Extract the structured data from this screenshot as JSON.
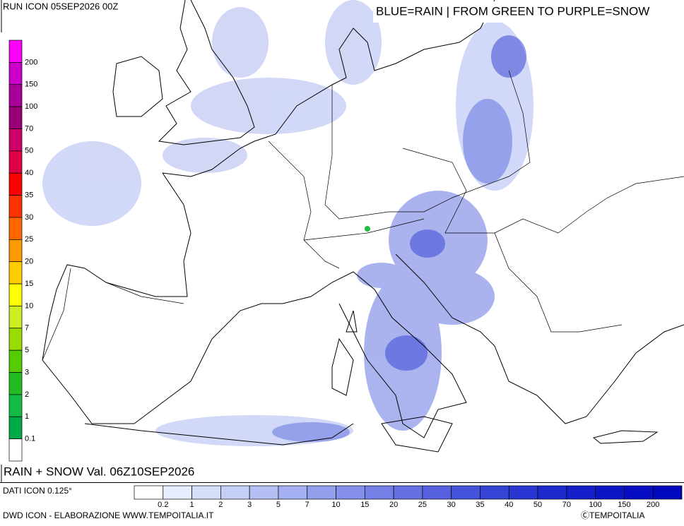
{
  "header": {
    "run": "RUN ICON 05SEP2026 00Z",
    "legend_note": "BLUE=RAIN | FROM GREEN TO PURPLE=SNOW",
    "valid": "RAIN + SNOW Val. 06Z10SEP2026"
  },
  "snow_scale": {
    "labels": [
      "200",
      "150",
      "100",
      "70",
      "50",
      "40",
      "35",
      "30",
      "25",
      "20",
      "15",
      "10",
      "7",
      "5",
      "3",
      "2",
      "1",
      "0.1"
    ],
    "colors": [
      "#ff00ff",
      "#cc00cc",
      "#aa0099",
      "#990077",
      "#cc0066",
      "#dd0044",
      "#ff0000",
      "#ff3300",
      "#ff6600",
      "#ff9900",
      "#ffcc00",
      "#ffff00",
      "#ccee22",
      "#99dd00",
      "#55cc00",
      "#22bb22",
      "#11bb44",
      "#00aa44",
      "#ffffff"
    ]
  },
  "rain_scale": {
    "labels": [
      "0.2",
      "1",
      "2",
      "3",
      "5",
      "7",
      "10",
      "15",
      "20",
      "25",
      "30",
      "35",
      "40",
      "50",
      "70",
      "100",
      "150",
      "200"
    ],
    "colors": [
      "#ffffff",
      "#e6eeff",
      "#d4dffa",
      "#c4cff7",
      "#b4bff4",
      "#a4b0f1",
      "#94a0ee",
      "#8590ea",
      "#7580e6",
      "#6570e2",
      "#5561de",
      "#4552da",
      "#3644d6",
      "#2a36d2",
      "#1f2ace",
      "#151fca",
      "#0c15c6",
      "#060dc2",
      "#0208be"
    ]
  },
  "footer": {
    "data_source": "DATI ICON 0.125°",
    "credit": "DWD ICON - ELABORAZIONE WWW.TEMPOITALIA.IT",
    "copyright": "ⒸTEMPOITALIA"
  }
}
